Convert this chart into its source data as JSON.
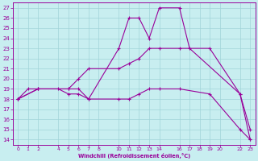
{
  "xlabel": "Windchill (Refroidissement éolien,°C)",
  "xlim": [
    -0.5,
    23.5
  ],
  "ylim": [
    13.5,
    27.5
  ],
  "yticks": [
    14,
    15,
    16,
    17,
    18,
    19,
    20,
    21,
    22,
    23,
    24,
    25,
    26,
    27
  ],
  "xticks": [
    0,
    1,
    2,
    4,
    5,
    6,
    7,
    8,
    10,
    11,
    12,
    13,
    14,
    16,
    17,
    18,
    19,
    20,
    22,
    23
  ],
  "bg_color": "#c8eef0",
  "grid_color": "#a0d4d8",
  "line_color": "#990099",
  "lines": [
    {
      "x": [
        0,
        1,
        2,
        4,
        5,
        6,
        7,
        10,
        11,
        12,
        13,
        14,
        16,
        17,
        22,
        23
      ],
      "y": [
        18,
        19,
        19,
        19,
        18.5,
        18.5,
        18,
        23,
        26,
        26,
        24,
        27,
        27,
        23,
        18.5,
        14
      ]
    },
    {
      "x": [
        0,
        2,
        5,
        6,
        7,
        10,
        11,
        12,
        13,
        14,
        16,
        19,
        22,
        23
      ],
      "y": [
        18,
        19,
        19,
        20,
        21,
        21,
        21.5,
        22,
        23,
        23,
        23,
        23,
        18.5,
        15
      ]
    },
    {
      "x": [
        0,
        2,
        5,
        6,
        7,
        10,
        11,
        12,
        13,
        14,
        16,
        19,
        22,
        23
      ],
      "y": [
        18,
        19,
        19,
        19,
        18,
        18,
        18,
        18.5,
        19,
        19,
        19,
        18.5,
        15,
        14
      ]
    }
  ]
}
